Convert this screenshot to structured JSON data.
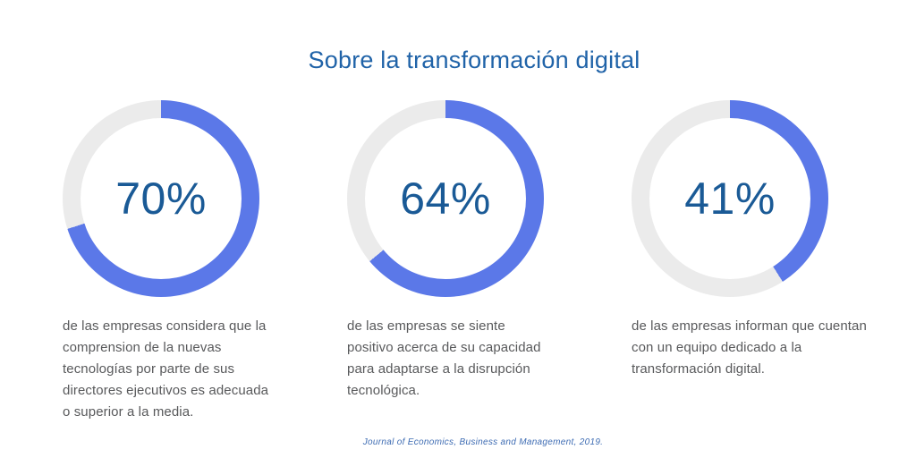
{
  "colors": {
    "page_bg": "#ffffff",
    "title_text": "#2063a8",
    "percent_text": "#1a5a96",
    "arc_fill": "#5b78e8",
    "arc_track": "#ebebeb",
    "description_text": "#58595b",
    "source_text": "#3e6cb3"
  },
  "chart_data": {
    "type": "pie",
    "subtype": "donut-progress",
    "title": "Sobre la transformación digital",
    "source": "Journal of Economics, Business and Management, 2019.",
    "start_angle_deg": 0,
    "direction": "clockwise",
    "legend": "none",
    "charts": [
      {
        "percent": 70,
        "label": "70%",
        "slices": [
          70,
          30
        ],
        "description": "de las empresas considera que la\ncomprension de la nuevas\ntecnologías por parte de sus\ndirectores ejecutivos es adecuada\no superior a la media."
      },
      {
        "percent": 64,
        "label": "64%",
        "slices": [
          64,
          36
        ],
        "description": "de las empresas se siente\npositivo acerca de su capacidad\npara adaptarse a la disrupción\ntecnológica."
      },
      {
        "percent": 41,
        "label": "41%",
        "slices": [
          41,
          59
        ],
        "description": "de las empresas informan que cuentan\ncon un equipo dedicado a la\ntransformación digital."
      }
    ]
  }
}
